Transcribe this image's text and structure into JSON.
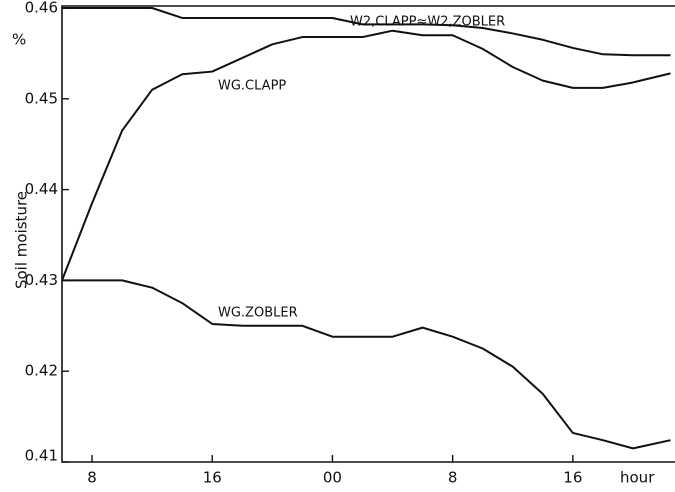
{
  "chart_data": {
    "type": "line",
    "y_label": "Soil moisture",
    "unit_label": "%",
    "x_label": "hour",
    "x": [
      6,
      8,
      10,
      12,
      14,
      16,
      18,
      20,
      22,
      24,
      26,
      28,
      30,
      32,
      34,
      36,
      38,
      40,
      42,
      44,
      46.5
    ],
    "series": [
      {
        "name": "W2,CLAPP≈W2,ZOBLER",
        "color": "#111111",
        "values": [
          0.46,
          0.46,
          0.46,
          0.46,
          0.4589,
          0.4589,
          0.4589,
          0.4589,
          0.4589,
          0.4589,
          0.4582,
          0.4582,
          0.4582,
          0.4581,
          0.4578,
          0.4572,
          0.4565,
          0.4556,
          0.4549,
          0.4548,
          0.4548
        ]
      },
      {
        "name": "WG.CLAPP",
        "color": "#111111",
        "values": [
          0.43,
          0.4385,
          0.4465,
          0.451,
          0.4527,
          0.453,
          0.4545,
          0.456,
          0.4568,
          0.4568,
          0.4568,
          0.4575,
          0.457,
          0.457,
          0.4555,
          0.4535,
          0.452,
          0.4512,
          0.4512,
          0.4518,
          0.4528
        ]
      },
      {
        "name": "WG.ZOBLER",
        "color": "#111111",
        "values": [
          0.43,
          0.43,
          0.43,
          0.4292,
          0.4275,
          0.4252,
          0.425,
          0.425,
          0.425,
          0.4238,
          0.4238,
          0.4238,
          0.4248,
          0.4238,
          0.4225,
          0.4205,
          0.4175,
          0.4132,
          0.4124,
          0.4115,
          0.4124
        ]
      }
    ],
    "xlim": [
      6,
      46.8
    ],
    "xticks": [
      8,
      16,
      {
        "value": 24,
        "label": "00"
      },
      {
        "value": 32,
        "label": "8"
      },
      {
        "value": 40,
        "label": "16"
      }
    ],
    "ylim": [
      0.41,
      0.46
    ],
    "yticks": [
      0.41,
      0.42,
      0.43,
      0.44,
      0.45,
      0.46
    ],
    "grid": false
  }
}
